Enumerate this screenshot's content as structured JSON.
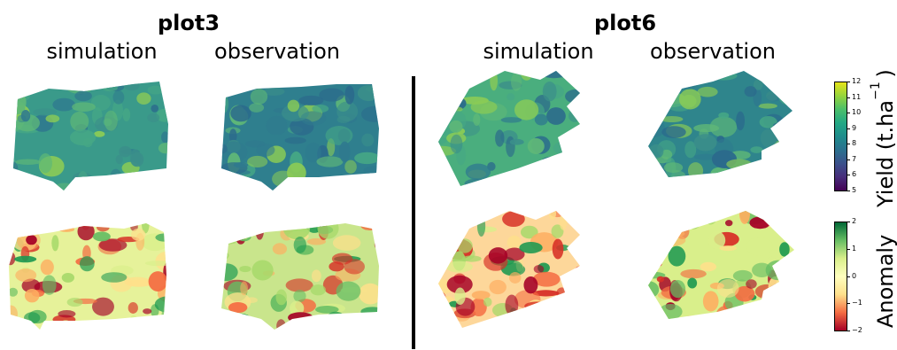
{
  "plots": [
    {
      "title": "plot3",
      "columns": [
        "simulation",
        "observation"
      ]
    },
    {
      "title": "plot6",
      "columns": [
        "simulation",
        "observation"
      ]
    }
  ],
  "colorbars": {
    "yield": {
      "label_main": "Yield (t.ha",
      "label_exp": "−1",
      "label_close": ")",
      "ticks": [
        "12",
        "11",
        "10",
        "9",
        "8",
        "7",
        "6",
        "5"
      ],
      "colors": [
        "#e6e419",
        "#95d43c",
        "#4bbf6a",
        "#22a884",
        "#1f8c8c",
        "#2b708e",
        "#3b518b",
        "#472d7b",
        "#440154"
      ]
    },
    "anomaly": {
      "label": "Anomaly",
      "ticks": [
        "2",
        "1",
        "0",
        "−1",
        "−2"
      ],
      "colors": [
        "#006837",
        "#66bd63",
        "#d9ef8b",
        "#ffffbf",
        "#fee08b",
        "#f46d43",
        "#a50026"
      ]
    }
  },
  "maps": {
    "yield_palette": [
      "#3b8f8a",
      "#2f7a8e",
      "#46a885",
      "#5fb877",
      "#2b6a8c",
      "#8ccc55"
    ],
    "anomaly_palette": [
      "#1a9850",
      "#66bd63",
      "#a6d96a",
      "#d9ef8b",
      "#fee08b",
      "#fdae61",
      "#f46d43",
      "#d73027",
      "#a50026"
    ]
  }
}
